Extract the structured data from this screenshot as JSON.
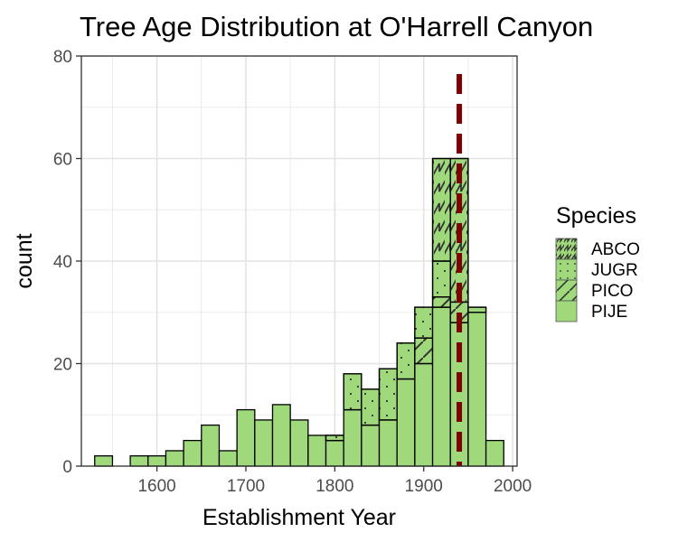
{
  "chart_data": {
    "type": "bar",
    "subtype": "stacked histogram",
    "title": "Tree Age Distribution at O'Harrell Canyon",
    "xlabel": "Establishment Year",
    "ylabel": "count",
    "xlim": [
      1515,
      2005
    ],
    "ylim": [
      0,
      80
    ],
    "x_ticks": [
      1600,
      1700,
      1800,
      1900,
      2000
    ],
    "y_ticks": [
      0,
      20,
      40,
      60,
      80
    ],
    "bin_width": 20,
    "bin_centers": [
      1540,
      1580,
      1600,
      1620,
      1640,
      1660,
      1680,
      1700,
      1720,
      1740,
      1760,
      1780,
      1800,
      1820,
      1840,
      1860,
      1880,
      1900,
      1920,
      1940,
      1960,
      1980
    ],
    "series": [
      {
        "name": "PIJE",
        "values": [
          2,
          2,
          2,
          3,
          5,
          8,
          3,
          11,
          9,
          12,
          9,
          6,
          5,
          11,
          8,
          9,
          17,
          20,
          31,
          28,
          30,
          5
        ]
      },
      {
        "name": "PICO",
        "values": [
          0,
          0,
          0,
          0,
          0,
          0,
          0,
          0,
          0,
          0,
          0,
          0,
          0,
          0,
          0,
          0,
          0,
          5,
          2,
          4,
          0,
          0
        ]
      },
      {
        "name": "JUGR",
        "values": [
          0,
          0,
          0,
          0,
          0,
          0,
          0,
          0,
          0,
          0,
          0,
          0,
          1,
          7,
          7,
          10,
          7,
          6,
          7,
          0,
          1,
          0
        ]
      },
      {
        "name": "ABCO",
        "values": [
          0,
          0,
          0,
          0,
          0,
          0,
          0,
          0,
          0,
          0,
          0,
          0,
          0,
          0,
          0,
          0,
          0,
          0,
          20,
          28,
          0,
          0
        ]
      }
    ],
    "reference_line": {
      "x": 1940,
      "style": "dashed",
      "color": "#7f0000"
    },
    "grid": true,
    "fill_color": "#9fd97c",
    "legend": {
      "title": "Species",
      "placement": "right",
      "entries": [
        {
          "name": "ABCO",
          "pattern": "zigzag"
        },
        {
          "name": "JUGR",
          "pattern": "dots"
        },
        {
          "name": "PICO",
          "pattern": "diagonal"
        },
        {
          "name": "PIJE",
          "pattern": "none"
        }
      ]
    }
  }
}
